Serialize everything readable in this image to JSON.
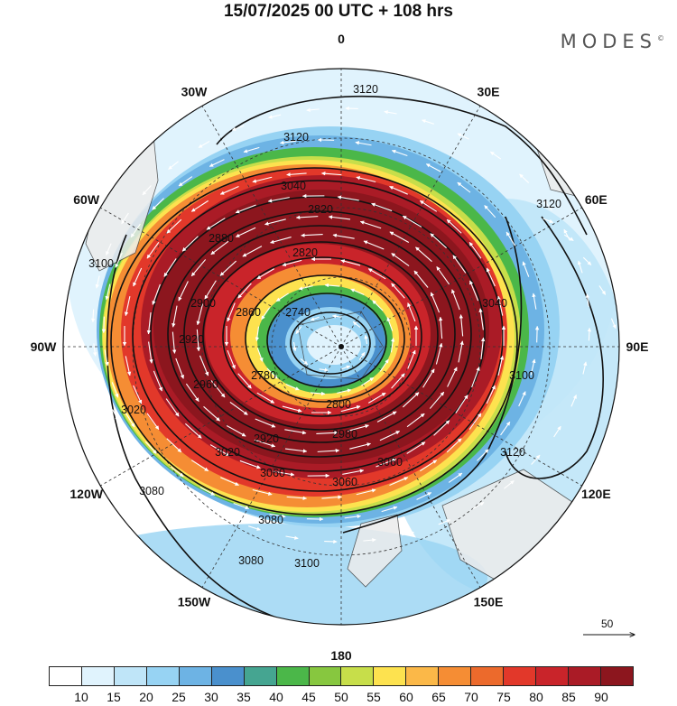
{
  "title": "15/07/2025  00 UTC  + 108 hrs",
  "logo": "MODES",
  "logo_mark": "©",
  "longitude_labels": [
    {
      "text": "0",
      "deg": 0
    },
    {
      "text": "30E",
      "deg": 30
    },
    {
      "text": "60E",
      "deg": 60
    },
    {
      "text": "90E",
      "deg": 90
    },
    {
      "text": "120E",
      "deg": 120
    },
    {
      "text": "150E",
      "deg": 150
    },
    {
      "text": "180",
      "deg": 180
    },
    {
      "text": "150W",
      "deg": 210
    },
    {
      "text": "120W",
      "deg": 240
    },
    {
      "text": "90W",
      "deg": 270
    },
    {
      "text": "60W",
      "deg": 300
    },
    {
      "text": "30W",
      "deg": 330
    }
  ],
  "contour_labels": [
    "3120",
    "3120",
    "3120",
    "3120",
    "3100",
    "3100",
    "3100",
    "3080",
    "3080",
    "3080",
    "3060",
    "3060",
    "3060",
    "3040",
    "3040",
    "3020",
    "3020",
    "2980",
    "2960",
    "2920",
    "2920",
    "2900",
    "2880",
    "2860",
    "2820",
    "2820",
    "2800",
    "2780",
    "2740"
  ],
  "vector_scale": {
    "label": "50",
    "value": 50
  },
  "colorbar": {
    "colors": [
      "#ffffff",
      "#e0f3fd",
      "#bfe5f8",
      "#97d3f3",
      "#6db3e4",
      "#4a90cd",
      "#45a591",
      "#4bb749",
      "#87c73f",
      "#c7de4a",
      "#fde24f",
      "#fbb848",
      "#f58d34",
      "#ec6a2c",
      "#e2382a",
      "#c9242a",
      "#aa1b26",
      "#8c161e"
    ],
    "labels": [
      "10",
      "15",
      "20",
      "25",
      "30",
      "35",
      "40",
      "45",
      "50",
      "55",
      "60",
      "65",
      "70",
      "75",
      "80",
      "85",
      "90"
    ]
  }
}
